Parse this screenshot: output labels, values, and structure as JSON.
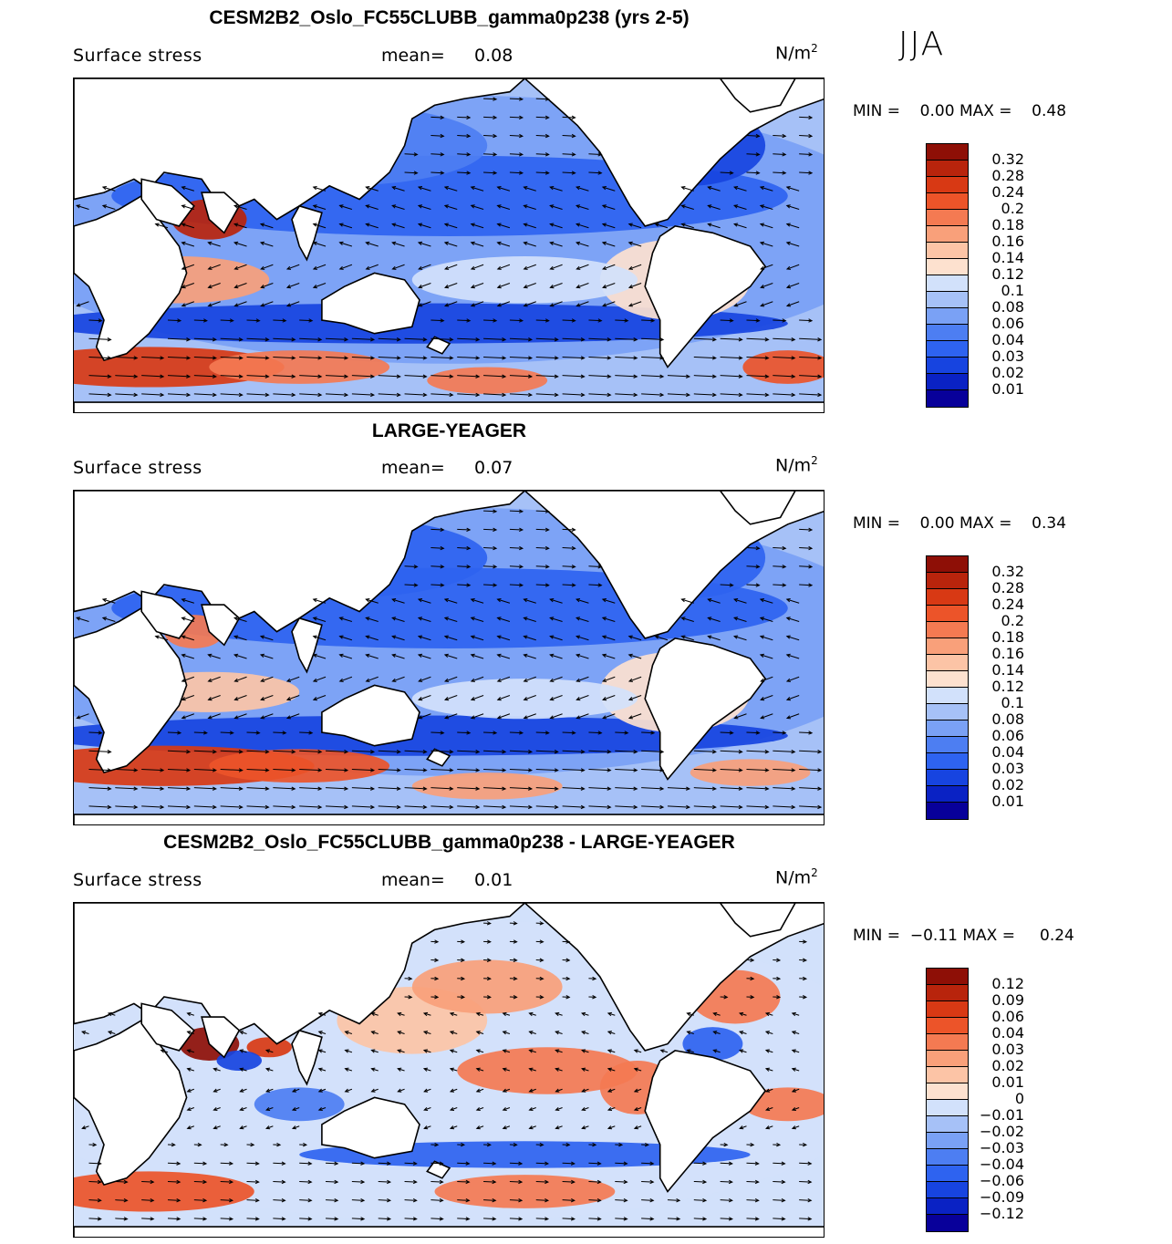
{
  "season": "JJA",
  "colors": {
    "abs_scale": [
      "#08009a",
      "#0a22c4",
      "#1744e0",
      "#2e63f0",
      "#4d7ef2",
      "#7aa1f5",
      "#a6c1f7",
      "#d2e1fb",
      "#fde1cf",
      "#fcc4a6",
      "#f9a07a",
      "#f47a52",
      "#ec5429",
      "#d83914",
      "#b8240c",
      "#8e0f06"
    ],
    "diff_scale": [
      "#08009a",
      "#0a22c4",
      "#1744e0",
      "#2e63f0",
      "#4d7ef2",
      "#7aa1f5",
      "#a6c1f7",
      "#d2e1fb",
      "#fde1cf",
      "#fcc4a6",
      "#f9a07a",
      "#f47a52",
      "#ec5429",
      "#d83914",
      "#b8240c",
      "#8e0f06"
    ],
    "land": "#ffffff",
    "coast": "#000000"
  },
  "panels": [
    {
      "id": "model",
      "title": "CESM2B2_Oslo_FC55CLUBB_gamma0p238 (yrs 2-5)",
      "variable": "Surface stress",
      "mean_label": "mean=",
      "mean_value": "0.08",
      "units": "N/m",
      "units_exp": "2",
      "min_label": "MIN =",
      "min_value": "0.00",
      "max_label": "MAX =",
      "max_value": "0.48",
      "scale": "abs",
      "levels": [
        "0.32",
        "0.28",
        "0.24",
        "0.2",
        "0.18",
        "0.16",
        "0.14",
        "0.12",
        "0.1",
        "0.08",
        "0.06",
        "0.04",
        "0.03",
        "0.02",
        "0.01"
      ]
    },
    {
      "id": "obs",
      "title": "LARGE-YEAGER",
      "variable": "Surface stress",
      "mean_label": "mean=",
      "mean_value": "0.07",
      "units": "N/m",
      "units_exp": "2",
      "min_label": "MIN =",
      "min_value": "0.00",
      "max_label": "MAX =",
      "max_value": "0.34",
      "scale": "abs",
      "levels": [
        "0.32",
        "0.28",
        "0.24",
        "0.2",
        "0.18",
        "0.16",
        "0.14",
        "0.12",
        "0.1",
        "0.08",
        "0.06",
        "0.04",
        "0.03",
        "0.02",
        "0.01"
      ]
    },
    {
      "id": "diff",
      "title": "CESM2B2_Oslo_FC55CLUBB_gamma0p238 - LARGE-YEAGER",
      "variable": "Surface stress",
      "mean_label": "mean=",
      "mean_value": "0.01",
      "units": "N/m",
      "units_exp": "2",
      "min_label": "MIN =",
      "min_value": "−0.11",
      "max_label": "MAX =",
      "max_value": "0.24",
      "scale": "diff",
      "levels": [
        "0.12",
        "0.09",
        "0.06",
        "0.04",
        "0.03",
        "0.02",
        "0.01",
        "0",
        "−0.01",
        "−0.02",
        "−0.03",
        "−0.04",
        "−0.06",
        "−0.09",
        "−0.12"
      ]
    }
  ]
}
